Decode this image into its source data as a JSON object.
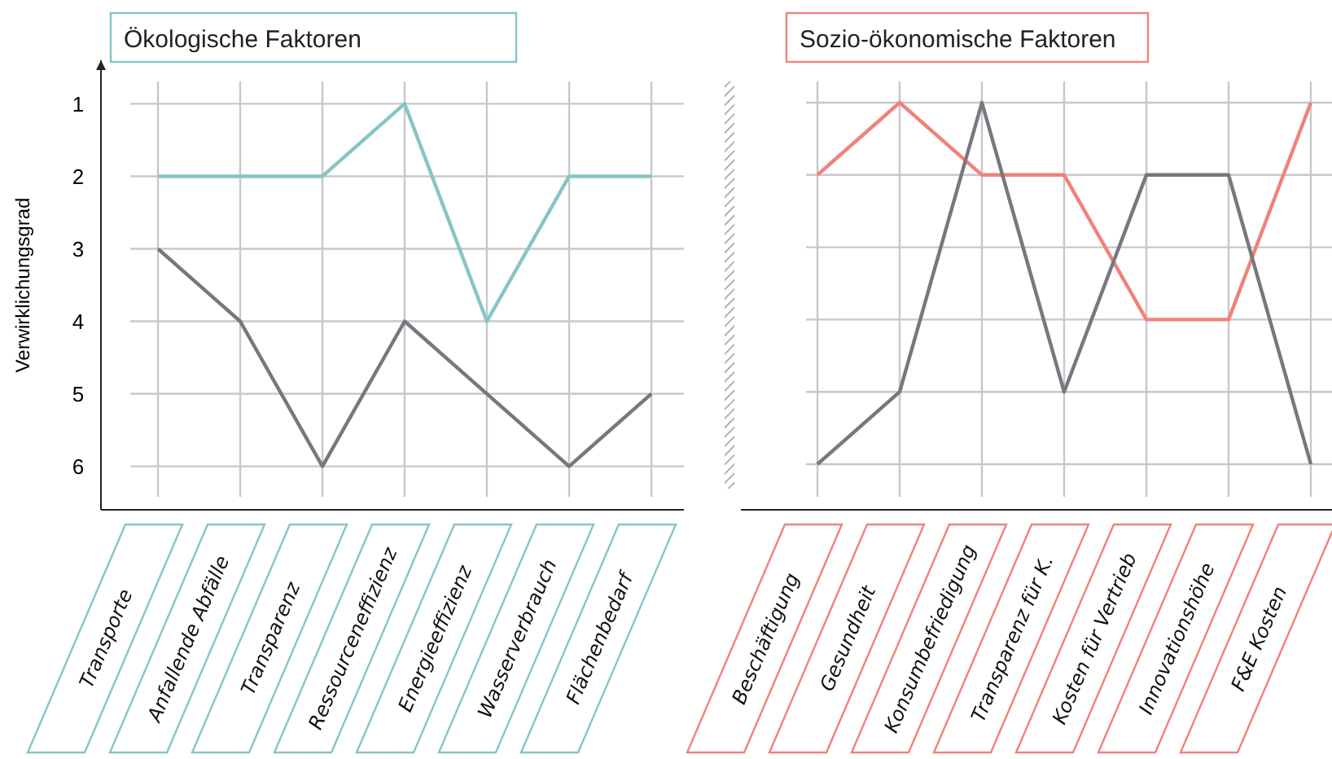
{
  "chart_data": [
    {
      "type": "line",
      "title": "Ökologische Faktoren",
      "ylabel": "Verwirklichungsgrad",
      "categories": [
        "Transporte",
        "Anfallende Abfälle",
        "Transparenz",
        "Ressourceneffizienz",
        "Energieeffizienz",
        "Wasserverbrauch",
        "Flächenbedarf"
      ],
      "series": [
        {
          "color": "#86c5c4",
          "values": [
            2,
            2,
            2,
            1,
            4,
            2,
            2
          ]
        },
        {
          "color": "#77777f",
          "values": [
            3,
            4,
            6,
            4,
            5,
            6,
            5
          ]
        }
      ],
      "ylim": [
        6.6,
        0.4
      ],
      "yticks": [
        1,
        2,
        3,
        4,
        5,
        6
      ],
      "grid": true,
      "marker": "none"
    },
    {
      "type": "line",
      "title": "Sozio-ökonomische Faktoren",
      "categories": [
        "Beschäftigung",
        "Gesundheit",
        "Konsumbefriedigung",
        "Transparenz für K.",
        "Kosten für Vertrieb",
        "Innovationshöhe",
        "F&E Kosten"
      ],
      "series": [
        {
          "color": "#f0827a",
          "values": [
            2,
            1,
            2,
            2,
            4,
            4,
            1
          ]
        },
        {
          "color": "#77777f",
          "values": [
            6,
            5,
            1,
            5,
            2,
            2,
            6
          ]
        }
      ],
      "ylim": [
        6,
        1
      ],
      "yticks": [
        1,
        2,
        3,
        4,
        5,
        6
      ],
      "grid": true,
      "tick_labels": "x",
      "marker": "none"
    }
  ]
}
